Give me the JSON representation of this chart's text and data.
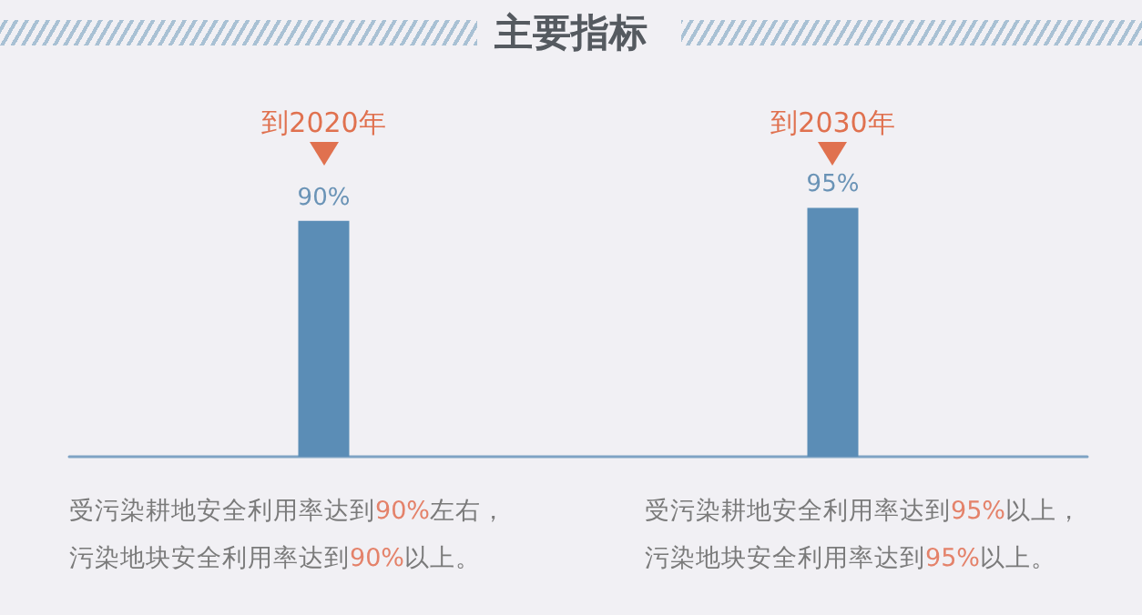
{
  "chart_data": {
    "type": "bar",
    "title": "主要指标",
    "categories": [
      "到2020年",
      "到2030年"
    ],
    "values": [
      90,
      95
    ],
    "value_labels": [
      "90%",
      "95%"
    ],
    "color": "#5b8db6",
    "annotations": [
      "受污染耕地安全利用率达到90%左右，污染地块安全利用率达到90%以上。",
      "受污染耕地安全利用率达到95%以上，污染地块安全利用率达到95%以上。"
    ]
  }
}
